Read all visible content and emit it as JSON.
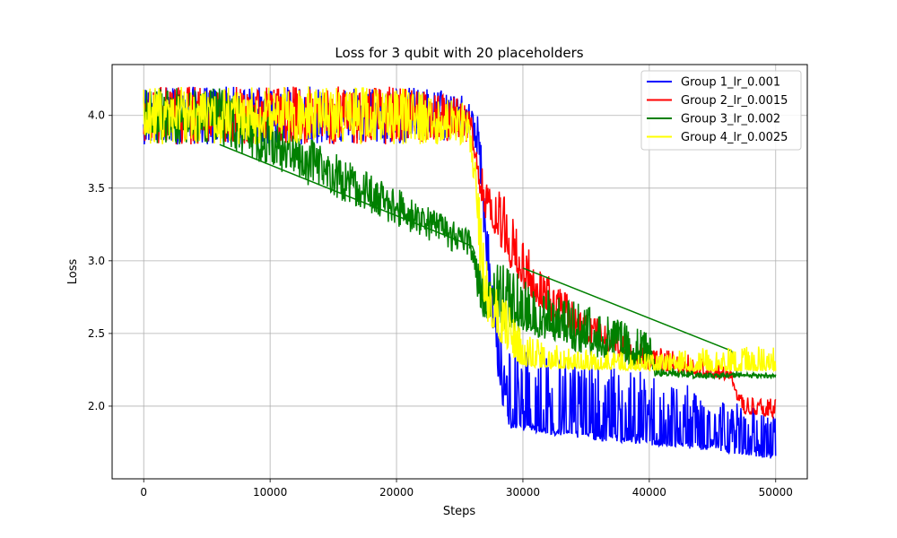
{
  "chart_data": {
    "type": "line",
    "title": "Loss for 3 qubit with 20 placeholders",
    "xlabel": "Steps",
    "ylabel": "Loss",
    "xlim": [
      -2500,
      52500
    ],
    "ylim": [
      1.5,
      4.35
    ],
    "xticks": [
      0,
      10000,
      20000,
      30000,
      40000,
      50000
    ],
    "yticks": [
      2.0,
      2.5,
      3.0,
      3.5,
      4.0
    ],
    "xtick_labels": [
      "0",
      "10000",
      "20000",
      "30000",
      "40000",
      "50000"
    ],
    "ytick_labels": [
      "2.0",
      "2.5",
      "3.0",
      "3.5",
      "4.0"
    ],
    "grid": true,
    "legend_position": "top-right",
    "series": [
      {
        "name": "Group 1_lr_0.001",
        "color": "#0000ff",
        "x": [
          0,
          10000,
          20000,
          25000,
          26000,
          26500,
          27000,
          27500,
          28000,
          28500,
          29000,
          30000,
          32000,
          35000,
          40000,
          45000,
          48000,
          50000
        ],
        "y": [
          4.0,
          4.0,
          4.0,
          3.98,
          3.95,
          3.8,
          3.3,
          2.8,
          2.3,
          2.0,
          1.9,
          1.88,
          1.85,
          1.82,
          1.78,
          1.74,
          1.71,
          1.68
        ],
        "noise_upper": [
          0.2,
          0.2,
          0.2,
          0.2,
          0.1,
          0.2,
          0.2,
          0.2,
          0.25,
          0.5,
          0.55,
          0.6,
          0.55,
          0.5,
          0.45,
          0.35,
          0.3,
          0.25
        ],
        "noise_lower": [
          0.2,
          0.2,
          0.2,
          0.15,
          0.1,
          0.2,
          0.2,
          0.2,
          0.1,
          0.05,
          0.05,
          0.05,
          0.05,
          0.05,
          0.05,
          0.05,
          0.05,
          0.05
        ]
      },
      {
        "name": "Group 2_lr_0.0015",
        "color": "#ff0000",
        "x": [
          0,
          10000,
          20000,
          25000,
          26000,
          26500,
          27000,
          28000,
          29000,
          30000,
          32000,
          35000,
          40000,
          45000,
          46500,
          47000,
          47500,
          50000
        ],
        "y": [
          4.0,
          4.0,
          4.0,
          3.98,
          3.9,
          3.6,
          3.4,
          3.25,
          3.05,
          2.9,
          2.7,
          2.5,
          2.3,
          2.22,
          2.2,
          2.05,
          1.97,
          1.95
        ],
        "noise_upper": [
          0.2,
          0.2,
          0.2,
          0.15,
          0.1,
          0.15,
          0.15,
          0.3,
          0.3,
          0.25,
          0.2,
          0.15,
          0.12,
          0.1,
          0.05,
          0.05,
          0.1,
          0.1
        ],
        "noise_lower": [
          0.2,
          0.2,
          0.2,
          0.15,
          0.1,
          0.1,
          0.1,
          0.1,
          0.1,
          0.1,
          0.1,
          0.08,
          0.05,
          0.03,
          0.03,
          0.03,
          0.03,
          0.03
        ]
      },
      {
        "name": "Group 3_lr_0.002",
        "color": "#008000",
        "x": [
          0,
          6000,
          26000,
          26500,
          27000,
          28000,
          30000,
          32000,
          35000,
          40000,
          40500,
          45000,
          47000,
          50000
        ],
        "y": [
          4.0,
          4.0,
          3.1,
          2.85,
          2.7,
          2.65,
          2.6,
          2.55,
          2.45,
          2.35,
          2.22,
          2.21,
          2.21,
          2.21
        ],
        "noise_upper": [
          0.2,
          0.2,
          0.1,
          0.2,
          0.3,
          0.35,
          0.3,
          0.25,
          0.25,
          0.15,
          0.05,
          0.02,
          0.02,
          0.02
        ],
        "noise_lower": [
          0.2,
          0.2,
          0.1,
          0.2,
          0.1,
          0.1,
          0.1,
          0.1,
          0.1,
          0.1,
          0.02,
          0.02,
          0.02,
          0.02
        ],
        "segments": [
          {
            "x": [
              6000,
              26000,
              26200
            ],
            "y": [
              3.8,
              3.1,
              3.05
            ]
          },
          {
            "x": [
              30000,
              46500,
              47000,
              50000
            ],
            "y": [
              2.95,
              2.38,
              2.21,
              2.21
            ]
          }
        ]
      },
      {
        "name": "Group 4_lr_0.0025",
        "color": "#ffff00",
        "x": [
          0,
          10000,
          20000,
          25500,
          26000,
          26500,
          27000,
          27500,
          28500,
          29500,
          30000,
          32000,
          35000,
          40000,
          45000,
          50000
        ],
        "y": [
          4.0,
          4.0,
          4.0,
          3.95,
          3.75,
          3.2,
          2.75,
          2.6,
          2.45,
          2.35,
          2.3,
          2.28,
          2.27,
          2.26,
          2.26,
          2.26
        ],
        "noise_upper": [
          0.2,
          0.2,
          0.2,
          0.15,
          0.2,
          0.3,
          0.35,
          0.3,
          0.3,
          0.25,
          0.2,
          0.15,
          0.12,
          0.1,
          0.15,
          0.15
        ],
        "noise_lower": [
          0.2,
          0.2,
          0.2,
          0.15,
          0.15,
          0.2,
          0.15,
          0.05,
          0.05,
          0.04,
          0.03,
          0.02,
          0.02,
          0.02,
          0.02,
          0.02
        ]
      }
    ]
  }
}
